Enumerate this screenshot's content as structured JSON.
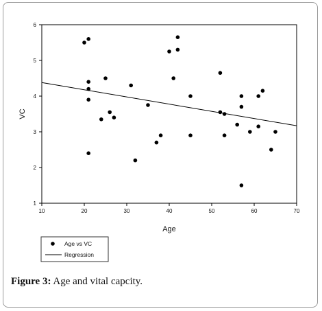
{
  "caption": {
    "label": "Figure 3:",
    "text": "Age and vital capcity."
  },
  "chart_data": {
    "type": "scatter",
    "xlabel": "Age",
    "ylabel": "VC",
    "xlim": [
      10,
      70
    ],
    "ylim": [
      1,
      6
    ],
    "xticks": [
      "10",
      "20",
      "30",
      "40",
      "50",
      "60",
      "70"
    ],
    "yticks": [
      "1",
      "2",
      "3",
      "4",
      "5",
      "6"
    ],
    "grid": false,
    "legend": {
      "position": "bottom-left",
      "entries": [
        "Age vs VC",
        "Regression"
      ]
    },
    "series": [
      {
        "name": "Age vs VC",
        "points": [
          [
            20,
            5.5
          ],
          [
            21,
            5.6
          ],
          [
            21,
            4.4
          ],
          [
            21,
            4.2
          ],
          [
            21,
            3.9
          ],
          [
            21,
            2.4
          ],
          [
            24,
            3.35
          ],
          [
            25,
            4.5
          ],
          [
            26,
            3.55
          ],
          [
            27,
            3.4
          ],
          [
            31,
            4.3
          ],
          [
            32,
            2.2
          ],
          [
            35,
            3.75
          ],
          [
            37,
            2.7
          ],
          [
            38,
            2.9
          ],
          [
            40,
            5.25
          ],
          [
            41,
            4.5
          ],
          [
            42,
            5.65
          ],
          [
            42,
            5.3
          ],
          [
            45,
            4.0
          ],
          [
            45,
            2.9
          ],
          [
            52,
            4.65
          ],
          [
            52,
            3.55
          ],
          [
            53,
            3.5
          ],
          [
            53,
            2.9
          ],
          [
            56,
            3.2
          ],
          [
            57,
            4.0
          ],
          [
            57,
            3.7
          ],
          [
            57,
            1.5
          ],
          [
            59,
            3.0
          ],
          [
            61,
            4.0
          ],
          [
            61,
            3.15
          ],
          [
            62,
            4.15
          ],
          [
            64,
            2.5
          ],
          [
            65,
            3.0
          ]
        ]
      },
      {
        "name": "Regression",
        "line": [
          [
            10,
            4.38
          ],
          [
            70,
            3.17
          ]
        ]
      }
    ]
  }
}
